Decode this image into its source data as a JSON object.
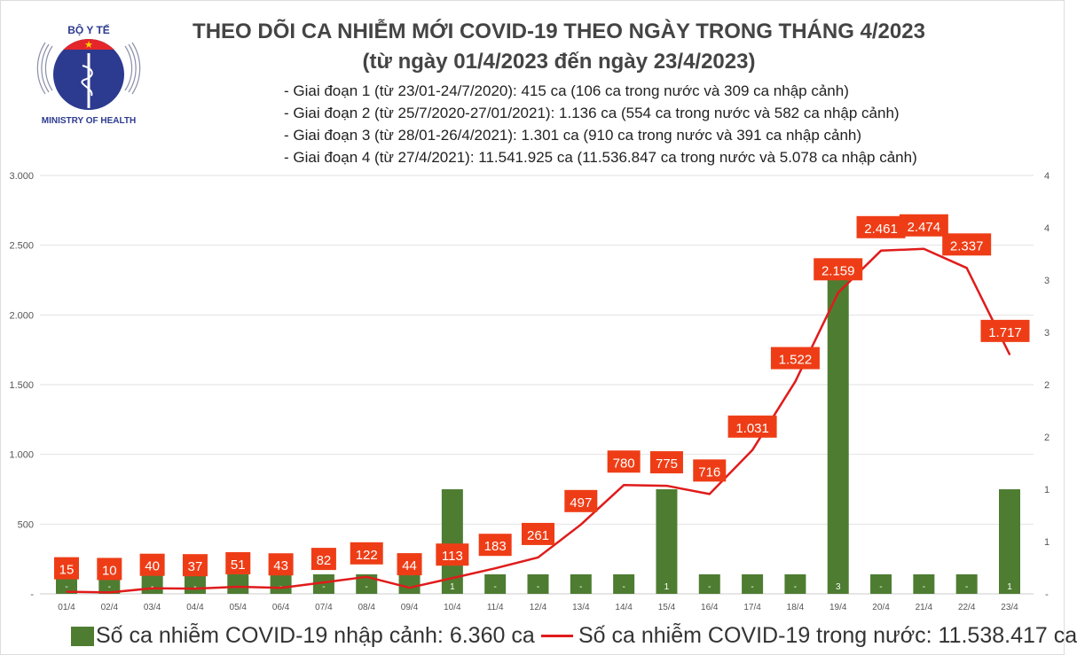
{
  "logo": {
    "top_text": "BỘ Y TẾ",
    "bottom_text": "MINISTRY OF HEALTH"
  },
  "header": {
    "title": "THEO DÕI CA NHIỄM MỚI COVID-19 THEO NGÀY TRONG THÁNG 4/2023",
    "subtitle": "(từ ngày 01/4/2023 đến ngày 23/4/2023)",
    "phases": [
      "- Giai đoạn 1 (từ 23/01-24/7/2020): 415 ca (106 ca trong nước và 309 ca nhập cảnh)",
      "- Giai đoạn 2 (từ 25/7/2020-27/01/2021): 1.136 ca (554 ca trong nước và 582 ca nhập cảnh)",
      "- Giai đoạn 3 (từ 28/01-26/4/2021): 1.301 ca (910 ca trong nước và 391 ca nhập cảnh)",
      "- Giai đoạn 4 (từ 27/4/2021): 11.541.925 ca (11.536.847 ca trong nước và 5.078 ca nhập cảnh)"
    ]
  },
  "chart_data": {
    "type": "bar+line",
    "categories": [
      "01/4",
      "02/4",
      "03/4",
      "04/4",
      "05/4",
      "06/4",
      "07/4",
      "08/4",
      "09/4",
      "10/4",
      "11/4",
      "12/4",
      "13/4",
      "14/4",
      "15/4",
      "16/4",
      "17/4",
      "18/4",
      "19/4",
      "20/4",
      "21/4",
      "22/4",
      "23/4"
    ],
    "series": [
      {
        "name": "Số ca nhiễm COVID-19 nhập cảnh: 6.360 ca",
        "type": "bar",
        "axis": "right",
        "color": "#4e7d32",
        "values": [
          0,
          0,
          0,
          0,
          0,
          0,
          0,
          0,
          0,
          1,
          0,
          0,
          0,
          0,
          1,
          0,
          0,
          0,
          3,
          0,
          0,
          0,
          1
        ],
        "labels": [
          "-",
          "-",
          "-",
          "-",
          "-",
          "-",
          "-",
          "-",
          "-",
          "1",
          "-",
          "-",
          "-",
          "-",
          "1",
          "-",
          "-",
          "-",
          "3",
          "-",
          "-",
          "-",
          "1"
        ]
      },
      {
        "name": "Số ca nhiễm COVID-19 trong nước: 11.538.417 ca",
        "type": "line",
        "axis": "left",
        "color": "#e01b1b",
        "values": [
          15,
          10,
          40,
          37,
          51,
          43,
          82,
          122,
          44,
          113,
          183,
          261,
          497,
          780,
          775,
          716,
          1031,
          1522,
          2159,
          2461,
          2474,
          2337,
          1717
        ],
        "labels": [
          "15",
          "10",
          "40",
          "37",
          "51",
          "43",
          "82",
          "122",
          "44",
          "113",
          "183",
          "261",
          "497",
          "780",
          "775",
          "716",
          "1.031",
          "1.522",
          "2.159",
          "2.461",
          "2.474",
          "2.337",
          "1.717"
        ]
      }
    ],
    "left_axis": {
      "ylim": [
        0,
        3000
      ],
      "tick_labels": [
        "-",
        "500",
        "1.000",
        "1.500",
        "2.000",
        "2.500",
        "3.000"
      ]
    },
    "right_axis": {
      "ylim": [
        0,
        4
      ],
      "tick_labels": [
        "-",
        "1",
        "1",
        "2",
        "2",
        "3",
        "3",
        "4",
        "4"
      ]
    },
    "label_box_color": "#ee3d16",
    "grid": true,
    "legend_position": "bottom"
  }
}
